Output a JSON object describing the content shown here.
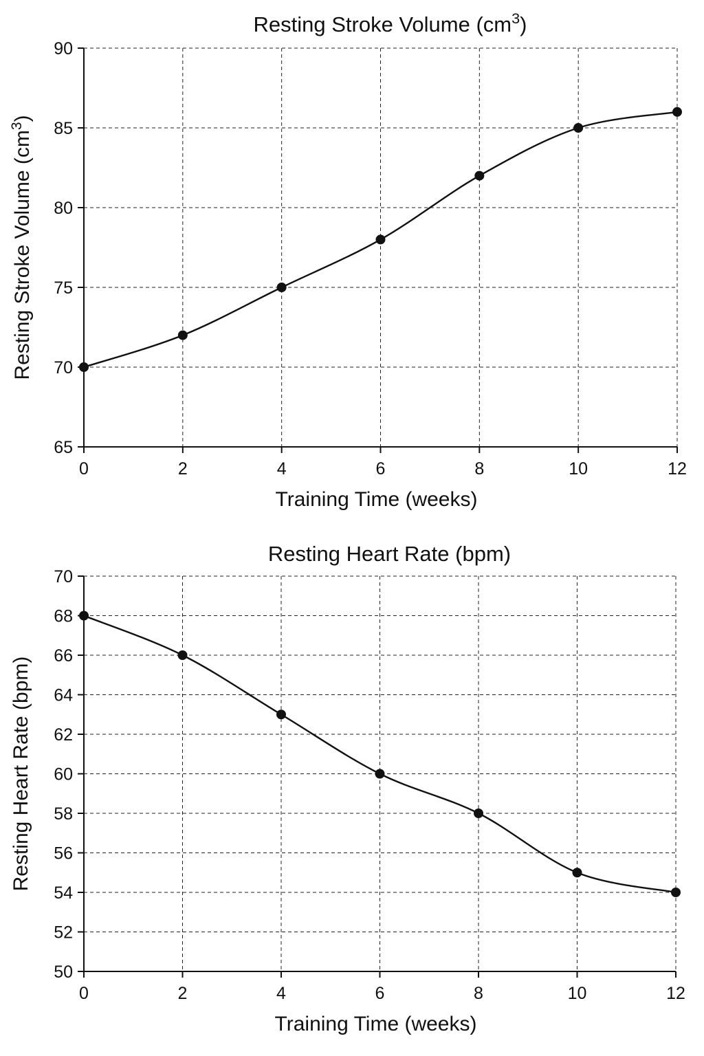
{
  "chart_data": [
    {
      "type": "line",
      "title": "Resting Stroke Volume (cm³)",
      "xlabel": "Training Time (weeks)",
      "ylabel": "Resting Stroke Volume (cm³)",
      "x": [
        0,
        2,
        4,
        6,
        8,
        10,
        12
      ],
      "series": [
        {
          "values": [
            70,
            72,
            75,
            78,
            82,
            85,
            86
          ]
        }
      ],
      "xlim": [
        0,
        12
      ],
      "ylim": [
        65,
        90
      ],
      "xticks": [
        0,
        2,
        4,
        6,
        8,
        10,
        12
      ],
      "yticks": [
        65,
        70,
        75,
        80,
        85,
        90
      ],
      "grid": true,
      "line_color": "#111111",
      "marker": "filled-circle",
      "curve": "smooth"
    },
    {
      "type": "line",
      "title": "Resting Heart Rate (bpm)",
      "xlabel": "Training Time (weeks)",
      "ylabel": "Resting Heart Rate (bpm)",
      "x": [
        0,
        2,
        4,
        6,
        8,
        10,
        12
      ],
      "series": [
        {
          "values": [
            68,
            66,
            63,
            60,
            58,
            55,
            54
          ]
        }
      ],
      "xlim": [
        0,
        12
      ],
      "ylim": [
        50,
        70
      ],
      "xticks": [
        0,
        2,
        4,
        6,
        8,
        10,
        12
      ],
      "yticks": [
        50,
        52,
        54,
        56,
        58,
        60,
        62,
        64,
        66,
        68,
        70
      ],
      "grid": true,
      "line_color": "#111111",
      "marker": "filled-circle",
      "curve": "smooth"
    }
  ]
}
